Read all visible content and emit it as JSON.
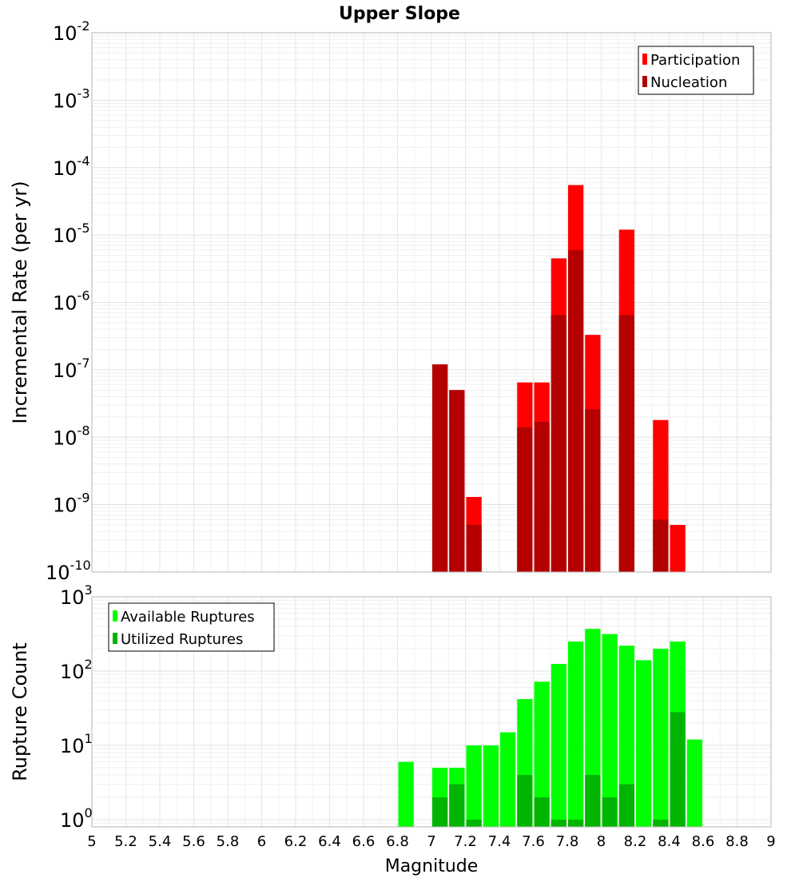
{
  "chart_data": [
    {
      "type": "bar",
      "title": "Upper Slope",
      "ylabel": "Incremental Rate (per yr)",
      "y_scale": "log",
      "ylim": [
        1e-10,
        0.01
      ],
      "xlim": [
        5,
        9
      ],
      "bar_width": 0.1,
      "y_tick_exponents": [
        "-10",
        "-9",
        "-8",
        "-7",
        "-6",
        "-5",
        "-4",
        "-3",
        "-2"
      ],
      "legend": {
        "position": "top-right"
      },
      "grid": true,
      "series": [
        {
          "name": "Participation",
          "color": "#ff0000",
          "x": [
            7.05,
            7.15,
            7.25,
            7.55,
            7.65,
            7.75,
            7.85,
            7.95,
            8.15,
            8.35,
            8.45
          ],
          "values": [
            1.2e-07,
            5e-08,
            1.3e-09,
            6.5e-08,
            6.5e-08,
            4.5e-06,
            5.5e-05,
            3.3e-07,
            1.2e-05,
            1.8e-08,
            5e-10
          ]
        },
        {
          "name": "Nucleation",
          "color": "#b40000",
          "x": [
            7.05,
            7.15,
            7.25,
            7.55,
            7.65,
            7.75,
            7.85,
            7.95,
            8.15,
            8.35
          ],
          "values": [
            1.2e-07,
            5e-08,
            5e-10,
            1.4e-08,
            1.7e-08,
            6.5e-07,
            6e-06,
            2.6e-08,
            6.5e-07,
            6e-10
          ]
        }
      ]
    },
    {
      "type": "bar",
      "ylabel": "Rupture Count",
      "xlabel": "Magnitude",
      "y_scale": "log",
      "ylim": [
        0.8,
        1000
      ],
      "xlim": [
        5,
        9
      ],
      "bar_width": 0.1,
      "y_tick_exponents": [
        "0",
        "1",
        "2",
        "3"
      ],
      "x_ticks": [
        "5",
        "5.2",
        "5.4",
        "5.6",
        "5.8",
        "6",
        "6.2",
        "6.4",
        "6.6",
        "6.8",
        "7",
        "7.2",
        "7.4",
        "7.6",
        "7.8",
        "8",
        "8.2",
        "8.4",
        "8.6",
        "8.8",
        "9"
      ],
      "legend": {
        "position": "top-left"
      },
      "grid": true,
      "series": [
        {
          "name": "Available Ruptures",
          "color": "#00ff00",
          "x": [
            6.85,
            7.05,
            7.15,
            7.25,
            7.35,
            7.45,
            7.55,
            7.65,
            7.75,
            7.85,
            7.95,
            8.05,
            8.15,
            8.25,
            8.35,
            8.45,
            8.55
          ],
          "values": [
            6,
            5,
            5,
            10,
            10,
            15,
            42,
            72,
            125,
            250,
            370,
            315,
            220,
            140,
            200,
            250,
            12
          ]
        },
        {
          "name": "Utilized Ruptures",
          "color": "#00b400",
          "x": [
            7.05,
            7.15,
            7.25,
            7.55,
            7.65,
            7.75,
            7.85,
            7.95,
            8.05,
            8.15,
            8.35,
            8.45
          ],
          "values": [
            2,
            3,
            1,
            4,
            2,
            1,
            1,
            4,
            2,
            3,
            1,
            28
          ]
        }
      ]
    }
  ]
}
